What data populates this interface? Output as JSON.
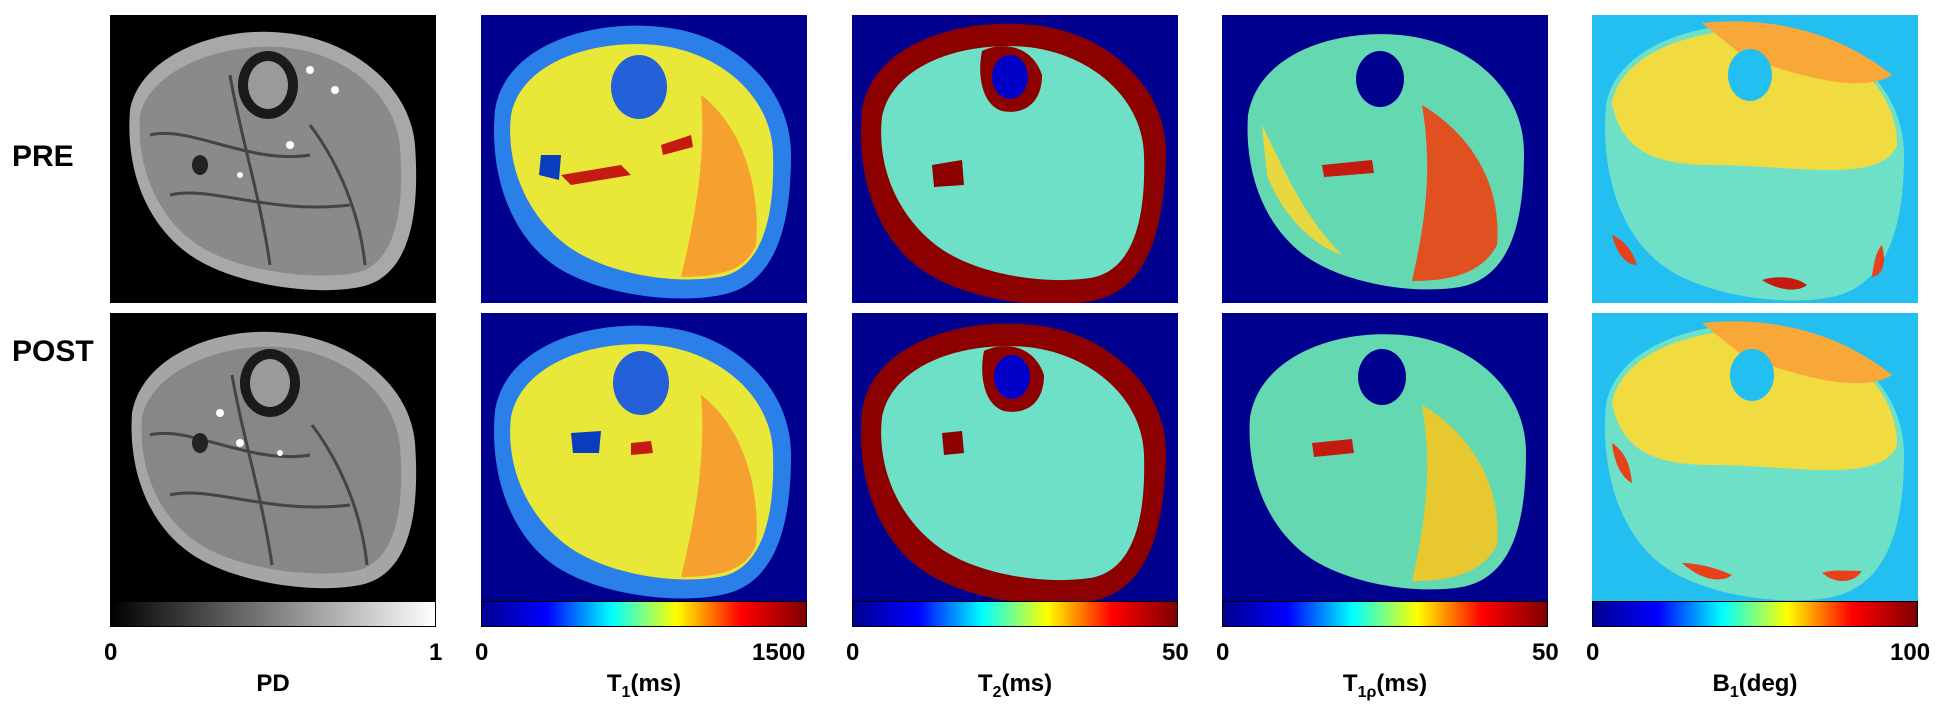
{
  "rows": [
    {
      "label": "PRE"
    },
    {
      "label": "POST"
    }
  ],
  "columns": [
    {
      "map": "PD",
      "title_main": "PD",
      "title_sub": "",
      "title_unit": "",
      "min": "0",
      "max": "1",
      "colormap": "gray",
      "background": "#000000"
    },
    {
      "map": "T1",
      "title_main": "T",
      "title_sub": "1",
      "title_unit": "(ms)",
      "min": "0",
      "max": "1500",
      "colormap": "jet",
      "background": "#00008f"
    },
    {
      "map": "T2",
      "title_main": "T",
      "title_sub": "2",
      "title_unit": "(ms)",
      "min": "0",
      "max": "50",
      "colormap": "jet",
      "background": "#00008f"
    },
    {
      "map": "T1rho",
      "title_main": "T",
      "title_sub": "1ρ",
      "title_unit": "(ms)",
      "min": "0",
      "max": "50",
      "colormap": "jet",
      "background": "#00008f"
    },
    {
      "map": "B1",
      "title_main": "B",
      "title_sub": "1",
      "title_unit": "(deg)",
      "min": "0",
      "max": "100",
      "colormap": "jet",
      "background": "#22bff0"
    }
  ]
}
